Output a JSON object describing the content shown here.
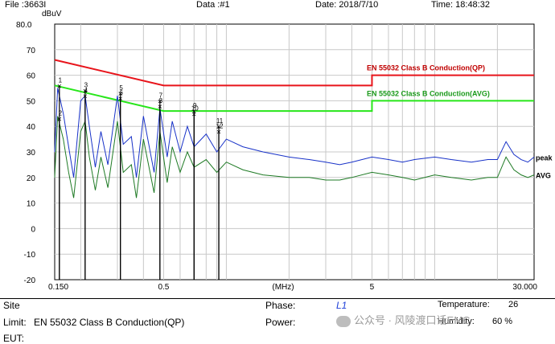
{
  "header": {
    "file": "File :3663I",
    "data": "Data :#1",
    "date": "Date: 2018/7/10",
    "time": "Time: 18:48:32"
  },
  "chart_data": {
    "type": "line",
    "xscale": "log",
    "xlim": [
      0.15,
      30
    ],
    "ylim": [
      -20,
      80
    ],
    "ylabel": "dBuV",
    "xlabel": "(MHz)",
    "y_ticks": [
      "80.0",
      "70",
      "60",
      "50",
      "40",
      "30",
      "20",
      "10",
      "0",
      "-10",
      "-20"
    ],
    "y_tick_values": [
      80,
      70,
      60,
      50,
      40,
      30,
      20,
      10,
      0,
      -10,
      -20
    ],
    "x_ticks": [
      "0.150",
      "0.5",
      "5",
      "30.000"
    ],
    "x_tick_values": [
      0.15,
      0.5,
      5,
      30
    ],
    "grid": true,
    "limit_lines": [
      {
        "name": "EN 55032 Class B Conduction(QP)",
        "color": "#e8141b",
        "x": [
          0.15,
          0.5,
          5,
          5,
          30
        ],
        "y": [
          66,
          56,
          56,
          60,
          60
        ]
      },
      {
        "name": "EN 55032 Class B Conduction(AVG)",
        "color": "#27e61a",
        "x": [
          0.15,
          0.5,
          5,
          5,
          30
        ],
        "y": [
          56,
          46,
          46,
          50,
          50
        ]
      }
    ],
    "series": [
      {
        "name": "peak",
        "color": "#1832c8",
        "x": [
          0.15,
          0.155,
          0.165,
          0.175,
          0.185,
          0.2,
          0.21,
          0.22,
          0.235,
          0.25,
          0.27,
          0.3,
          0.32,
          0.35,
          0.37,
          0.4,
          0.45,
          0.48,
          0.52,
          0.55,
          0.6,
          0.65,
          0.7,
          0.8,
          0.9,
          1.0,
          1.2,
          1.5,
          2.0,
          2.5,
          3.0,
          3.5,
          4.0,
          5.0,
          6.0,
          7.0,
          8.0,
          10.0,
          12.0,
          15.0,
          18.0,
          20.0,
          22.0,
          24.0,
          26.0,
          28.0,
          30.0
        ],
        "y": [
          30,
          55,
          45,
          32,
          20,
          50,
          52,
          40,
          24,
          38,
          25,
          52,
          33,
          36,
          20,
          44,
          22,
          47,
          28,
          42,
          30,
          40,
          32,
          37,
          30,
          35,
          32,
          30,
          28,
          27,
          26,
          25,
          26,
          28,
          27,
          26,
          27,
          28,
          27,
          26,
          27,
          27,
          34,
          29,
          27,
          26,
          28
        ]
      },
      {
        "name": "AVG",
        "color": "#1e7a24",
        "x": [
          0.15,
          0.155,
          0.165,
          0.175,
          0.185,
          0.2,
          0.21,
          0.22,
          0.235,
          0.25,
          0.27,
          0.3,
          0.32,
          0.35,
          0.37,
          0.4,
          0.45,
          0.48,
          0.52,
          0.55,
          0.6,
          0.65,
          0.7,
          0.8,
          0.9,
          1.0,
          1.2,
          1.5,
          2.0,
          2.5,
          3.0,
          3.5,
          4.0,
          5.0,
          6.0,
          7.0,
          8.0,
          10.0,
          12.0,
          15.0,
          18.0,
          20.0,
          22.0,
          24.0,
          26.0,
          28.0,
          30.0
        ],
        "y": [
          20,
          44,
          35,
          22,
          12,
          38,
          42,
          28,
          15,
          28,
          16,
          42,
          22,
          25,
          12,
          35,
          14,
          38,
          18,
          32,
          22,
          30,
          24,
          27,
          22,
          26,
          23,
          21,
          20,
          20,
          19,
          19,
          20,
          22,
          21,
          20,
          19,
          21,
          20,
          19,
          20,
          20,
          28,
          23,
          21,
          20,
          21
        ]
      }
    ],
    "markers": [
      {
        "label": "1",
        "x": 0.158,
        "y": 56
      },
      {
        "label": "2",
        "x": 0.158,
        "y": 43
      },
      {
        "label": "3",
        "x": 0.21,
        "y": 54
      },
      {
        "label": "4",
        "x": 0.21,
        "y": 52
      },
      {
        "label": "5",
        "x": 0.31,
        "y": 53
      },
      {
        "label": "6",
        "x": 0.31,
        "y": 51
      },
      {
        "label": "7",
        "x": 0.48,
        "y": 50
      },
      {
        "label": "8",
        "x": 0.48,
        "y": 48
      },
      {
        "label": "9",
        "x": 0.7,
        "y": 46
      },
      {
        "label": "10",
        "x": 0.7,
        "y": 45
      },
      {
        "label": "11",
        "x": 0.92,
        "y": 40
      },
      {
        "label": "12",
        "x": 0.92,
        "y": 38
      }
    ]
  },
  "info": {
    "site_label": "Site",
    "limit_label": "Limit:",
    "limit_value": "EN 55032 Class B Conduction(QP)",
    "eut_label": "EUT:",
    "phase_label": "Phase:",
    "phase_value": "L1",
    "power_label": "Power:",
    "temperature_label": "Temperature:",
    "temperature_value": "26",
    "humidity_label": "Humidity:",
    "humidity_value": "60 %"
  },
  "watermark": {
    "text": "公众号 · 风陵渡口话EMC"
  }
}
